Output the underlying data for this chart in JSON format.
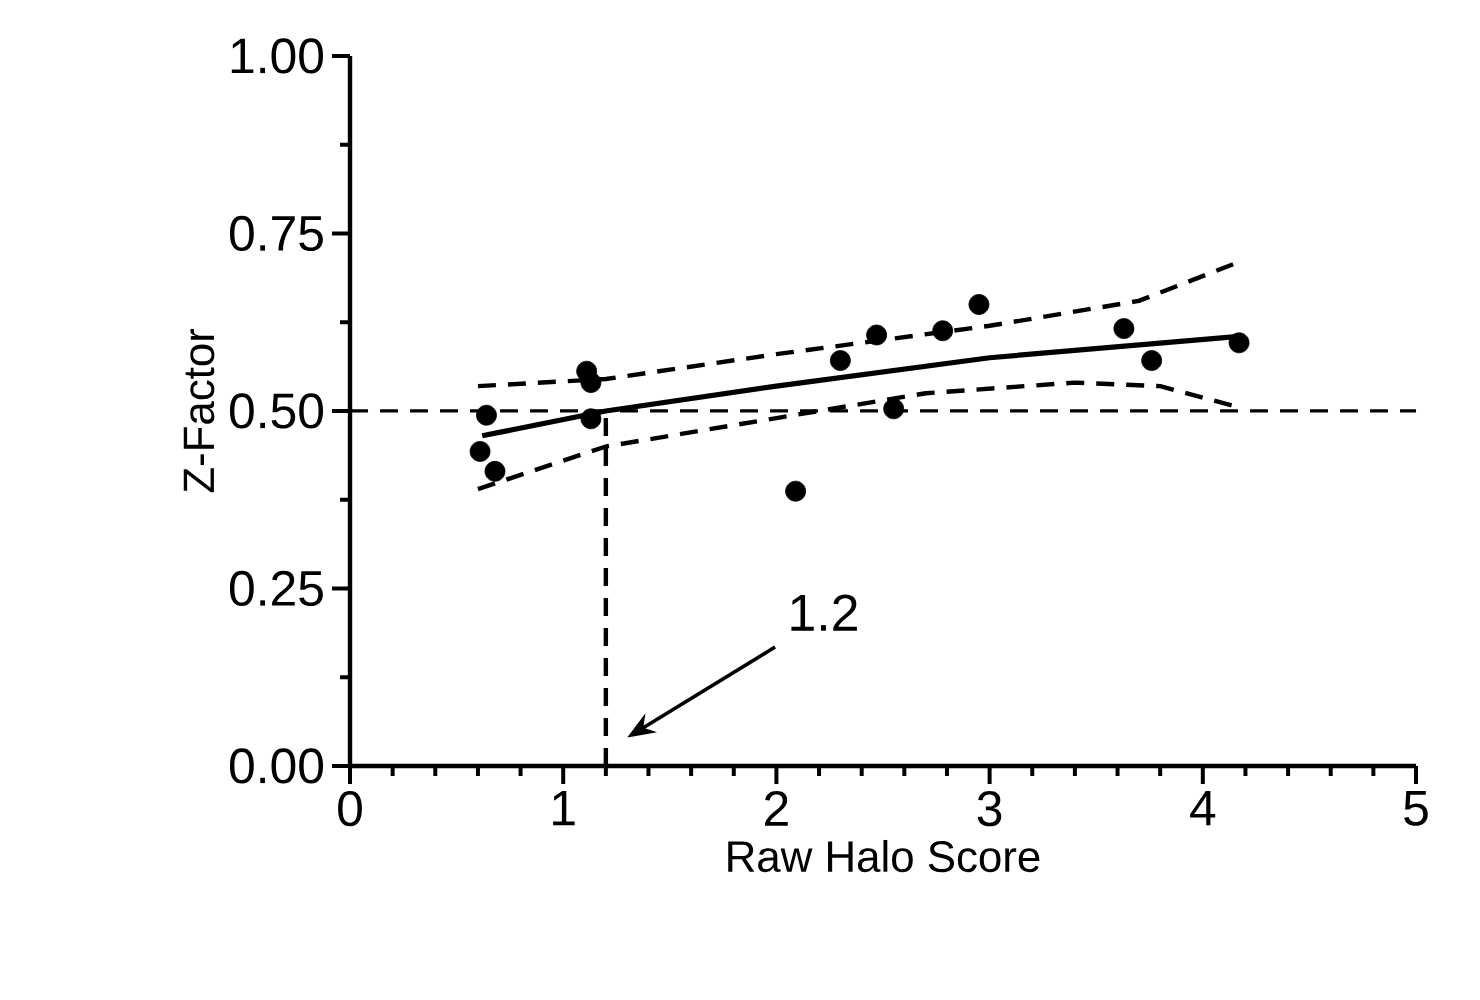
{
  "chart_data": {
    "type": "scatter",
    "xlabel": "Raw Halo Score",
    "ylabel": "Z-Factor",
    "xlim": [
      0,
      5
    ],
    "ylim": [
      0,
      1
    ],
    "xticks": [
      0,
      1,
      2,
      3,
      4,
      5
    ],
    "yticks": [
      {
        "value": 0,
        "label": "0.00"
      },
      {
        "value": 0.25,
        "label": "0.25"
      },
      {
        "value": 0.5,
        "label": "0.50"
      },
      {
        "value": 0.75,
        "label": "0.75"
      },
      {
        "value": 1,
        "label": "1.00"
      }
    ],
    "grid": false,
    "series": [
      {
        "color": "#000000",
        "x": [
          0.61,
          0.64,
          0.68,
          1.11,
          1.13,
          1.13,
          2.09,
          2.3,
          2.47,
          2.55,
          2.78,
          2.95,
          3.63,
          3.76,
          4.17
        ],
        "values": [
          0.443,
          0.494,
          0.415,
          0.556,
          0.54,
          0.489,
          0.387,
          0.571,
          0.607,
          0.503,
          0.613,
          0.65,
          0.616,
          0.571,
          0.596
        ]
      },
      {
        "type": "line",
        "color": "#000000",
        "line_style": "solid",
        "x": [
          0.62,
          1.2,
          2,
          3,
          4.17
        ],
        "values": [
          0.465,
          0.5,
          0.535,
          0.575,
          0.605
        ]
      },
      {
        "type": "line",
        "color": "#000000",
        "line_style": "dashed",
        "x": [
          0.6,
          1.2,
          2,
          3,
          3.7,
          4.17
        ],
        "values": [
          0.535,
          0.545,
          0.58,
          0.62,
          0.655,
          0.71
        ]
      },
      {
        "type": "line",
        "color": "#000000",
        "line_style": "dashed",
        "x": [
          0.6,
          1.2,
          2,
          2.7,
          3.4,
          3.8,
          4.17
        ],
        "values": [
          0.39,
          0.45,
          0.49,
          0.525,
          0.54,
          0.535,
          0.505
        ]
      },
      {
        "type": "line",
        "color": "#000000",
        "line_style": "dashed",
        "x": [
          1.2,
          1.2
        ],
        "values": [
          0,
          0.5
        ]
      }
    ],
    "ref_lines": [
      {
        "axis": "y",
        "value": 0.5,
        "color": "#000000",
        "line_style": "dashed"
      }
    ],
    "annotations": [
      "1.2"
    ]
  }
}
